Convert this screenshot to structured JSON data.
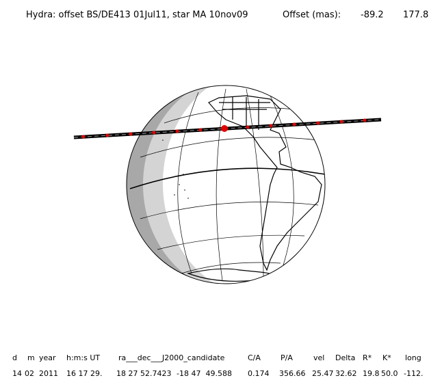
{
  "header": {
    "title": "Hydra: offset BS/DE413 01Jul11, star MA 10nov09",
    "offset_label": "Offset (mas):",
    "offset_values": [
      "-89.2",
      "177.8"
    ]
  },
  "table": {
    "headers": [
      "d",
      "m",
      "year",
      "h:m:s UT",
      "ra___dec___J2000_candidate",
      "C/A",
      "P/A",
      "vel",
      "Delta",
      "R*",
      "K*",
      "long"
    ],
    "rows": [
      [
        "14",
        "02",
        "2011",
        "16 17 29.",
        "18 27 52.7423",
        "-18 47  49.588",
        "0.174",
        "356.66",
        "25.47",
        "32.62",
        "19.8",
        "50.0",
        "-112."
      ]
    ]
  }
}
